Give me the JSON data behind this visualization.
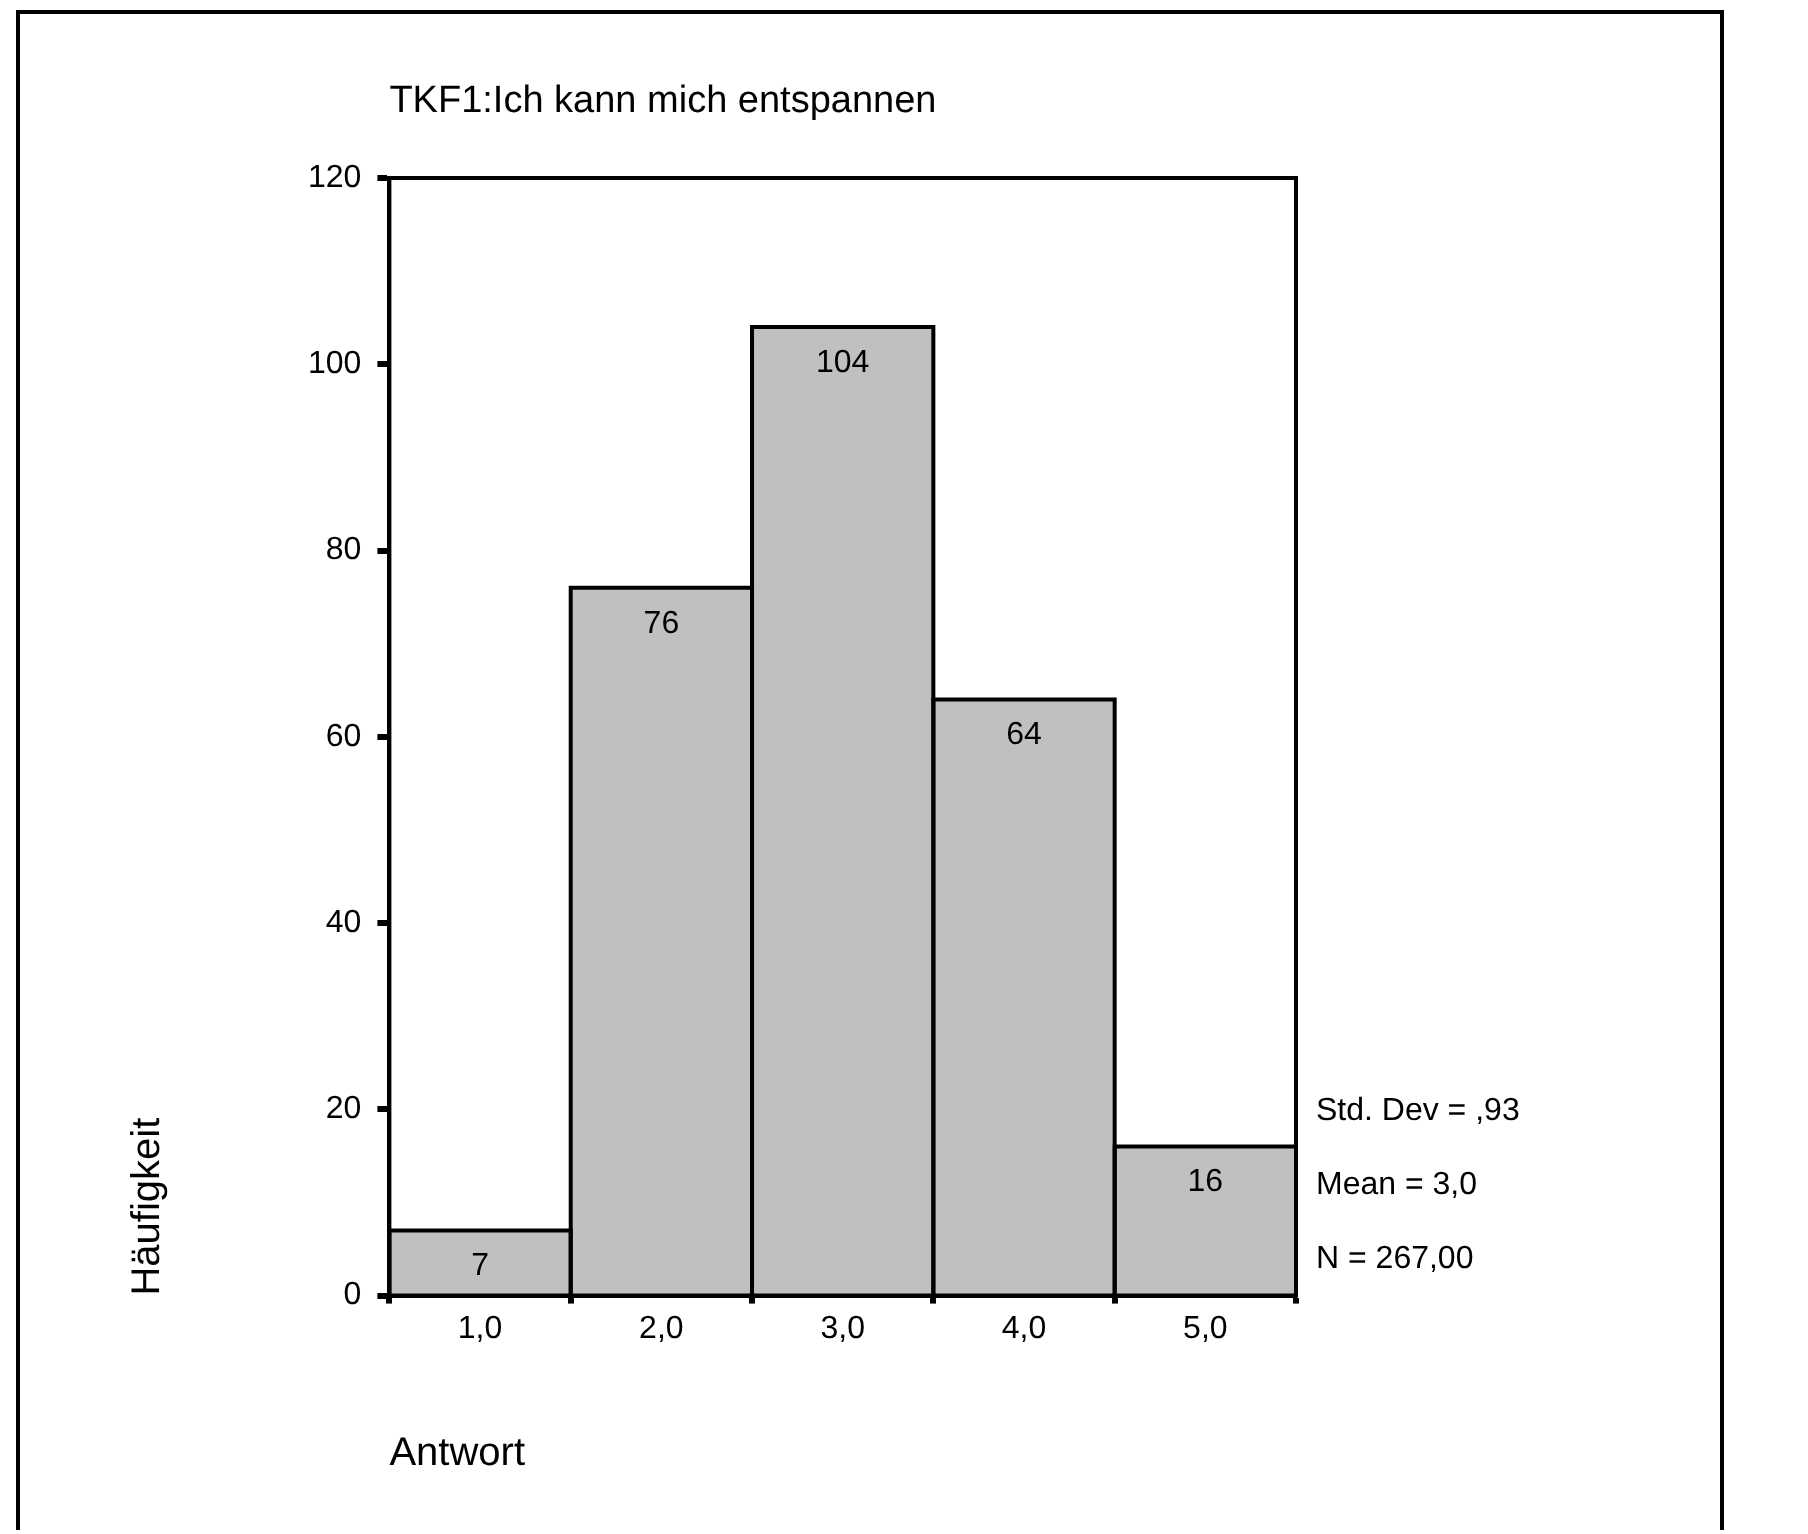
{
  "chart_data": {
    "type": "histogram",
    "title": "TKF1:Ich kann mich entspannen",
    "xlabel": "Antwort",
    "ylabel": "Häufigkeit",
    "bins": [
      0.5,
      1.5,
      2.5,
      3.5,
      4.5,
      5.5
    ],
    "values": [
      7,
      76,
      104,
      64,
      16
    ],
    "color": "#c0c0c0",
    "xlim": [
      0.5,
      5.5
    ],
    "xticks": [
      {
        "value": 1,
        "label": "1,0"
      },
      {
        "value": 2,
        "label": "2,0"
      },
      {
        "value": 3,
        "label": "3,0"
      },
      {
        "value": 4,
        "label": "4,0"
      },
      {
        "value": 5,
        "label": "5,0"
      }
    ],
    "ylim": [
      0,
      120
    ],
    "yticks": [
      0,
      20,
      40,
      60,
      80,
      100,
      120
    ],
    "data_labels": true,
    "grid": false,
    "legend": false,
    "annotations": [
      "Std. Dev = ,93",
      "Mean = 3,0",
      "N = 267,00"
    ]
  }
}
